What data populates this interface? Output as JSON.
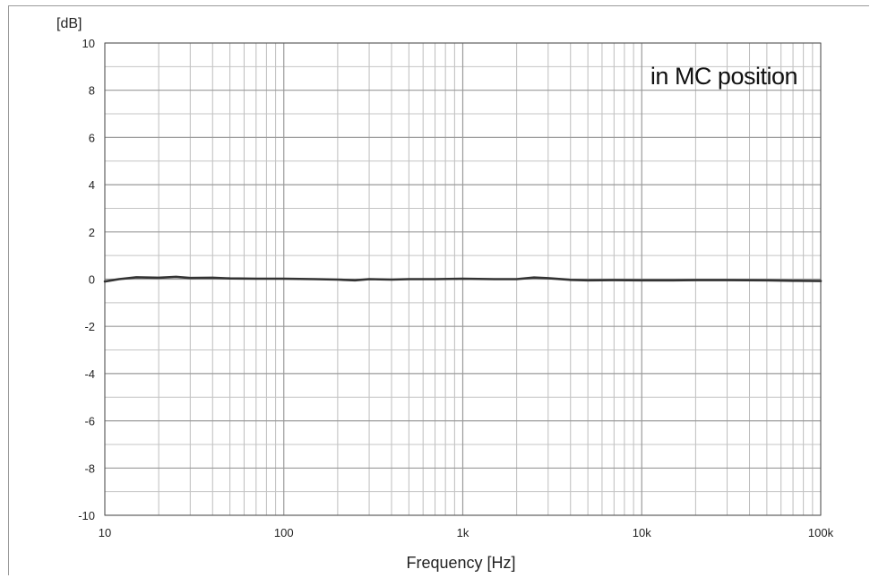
{
  "chart_data": {
    "type": "line",
    "title": "",
    "xlabel": "Frequency [Hz]",
    "ylabel": "[dB]",
    "x_scale": "log",
    "xlim": [
      10,
      100000
    ],
    "ylim": [
      -10,
      10
    ],
    "grid": true,
    "x_ticks": [
      {
        "value": 10,
        "label": "10"
      },
      {
        "value": 100,
        "label": "100"
      },
      {
        "value": 1000,
        "label": "1k"
      },
      {
        "value": 10000,
        "label": "10k"
      },
      {
        "value": 100000,
        "label": "100k"
      }
    ],
    "y_ticks": [
      {
        "value": 10,
        "label": "10"
      },
      {
        "value": 8,
        "label": "8"
      },
      {
        "value": 6,
        "label": "6"
      },
      {
        "value": 4,
        "label": "4"
      },
      {
        "value": 2,
        "label": "2"
      },
      {
        "value": 0,
        "label": "0"
      },
      {
        "value": -2,
        "label": "-2"
      },
      {
        "value": -4,
        "label": "-4"
      },
      {
        "value": -6,
        "label": "-6"
      },
      {
        "value": -8,
        "label": "-8"
      },
      {
        "value": -10,
        "label": "-10"
      }
    ],
    "annotations": [
      {
        "text": "in MC position",
        "placement": "top-right"
      }
    ],
    "series": [
      {
        "color": "#333333",
        "x": [
          10,
          12,
          15,
          20,
          25,
          30,
          40,
          50,
          70,
          100,
          150,
          200,
          250,
          300,
          400,
          500,
          700,
          1000,
          1500,
          2000,
          2500,
          3000,
          4000,
          5000,
          7000,
          10000,
          15000,
          20000,
          30000,
          50000,
          70000,
          100000
        ],
        "y": [
          -0.1,
          0.0,
          0.08,
          0.06,
          0.1,
          0.05,
          0.06,
          0.03,
          0.02,
          0.02,
          0.0,
          -0.02,
          -0.05,
          0.0,
          -0.02,
          0.0,
          0.0,
          0.02,
          0.0,
          0.0,
          0.07,
          0.04,
          -0.03,
          -0.05,
          -0.04,
          -0.05,
          -0.05,
          -0.04,
          -0.04,
          -0.05,
          -0.07,
          -0.08
        ]
      }
    ]
  }
}
